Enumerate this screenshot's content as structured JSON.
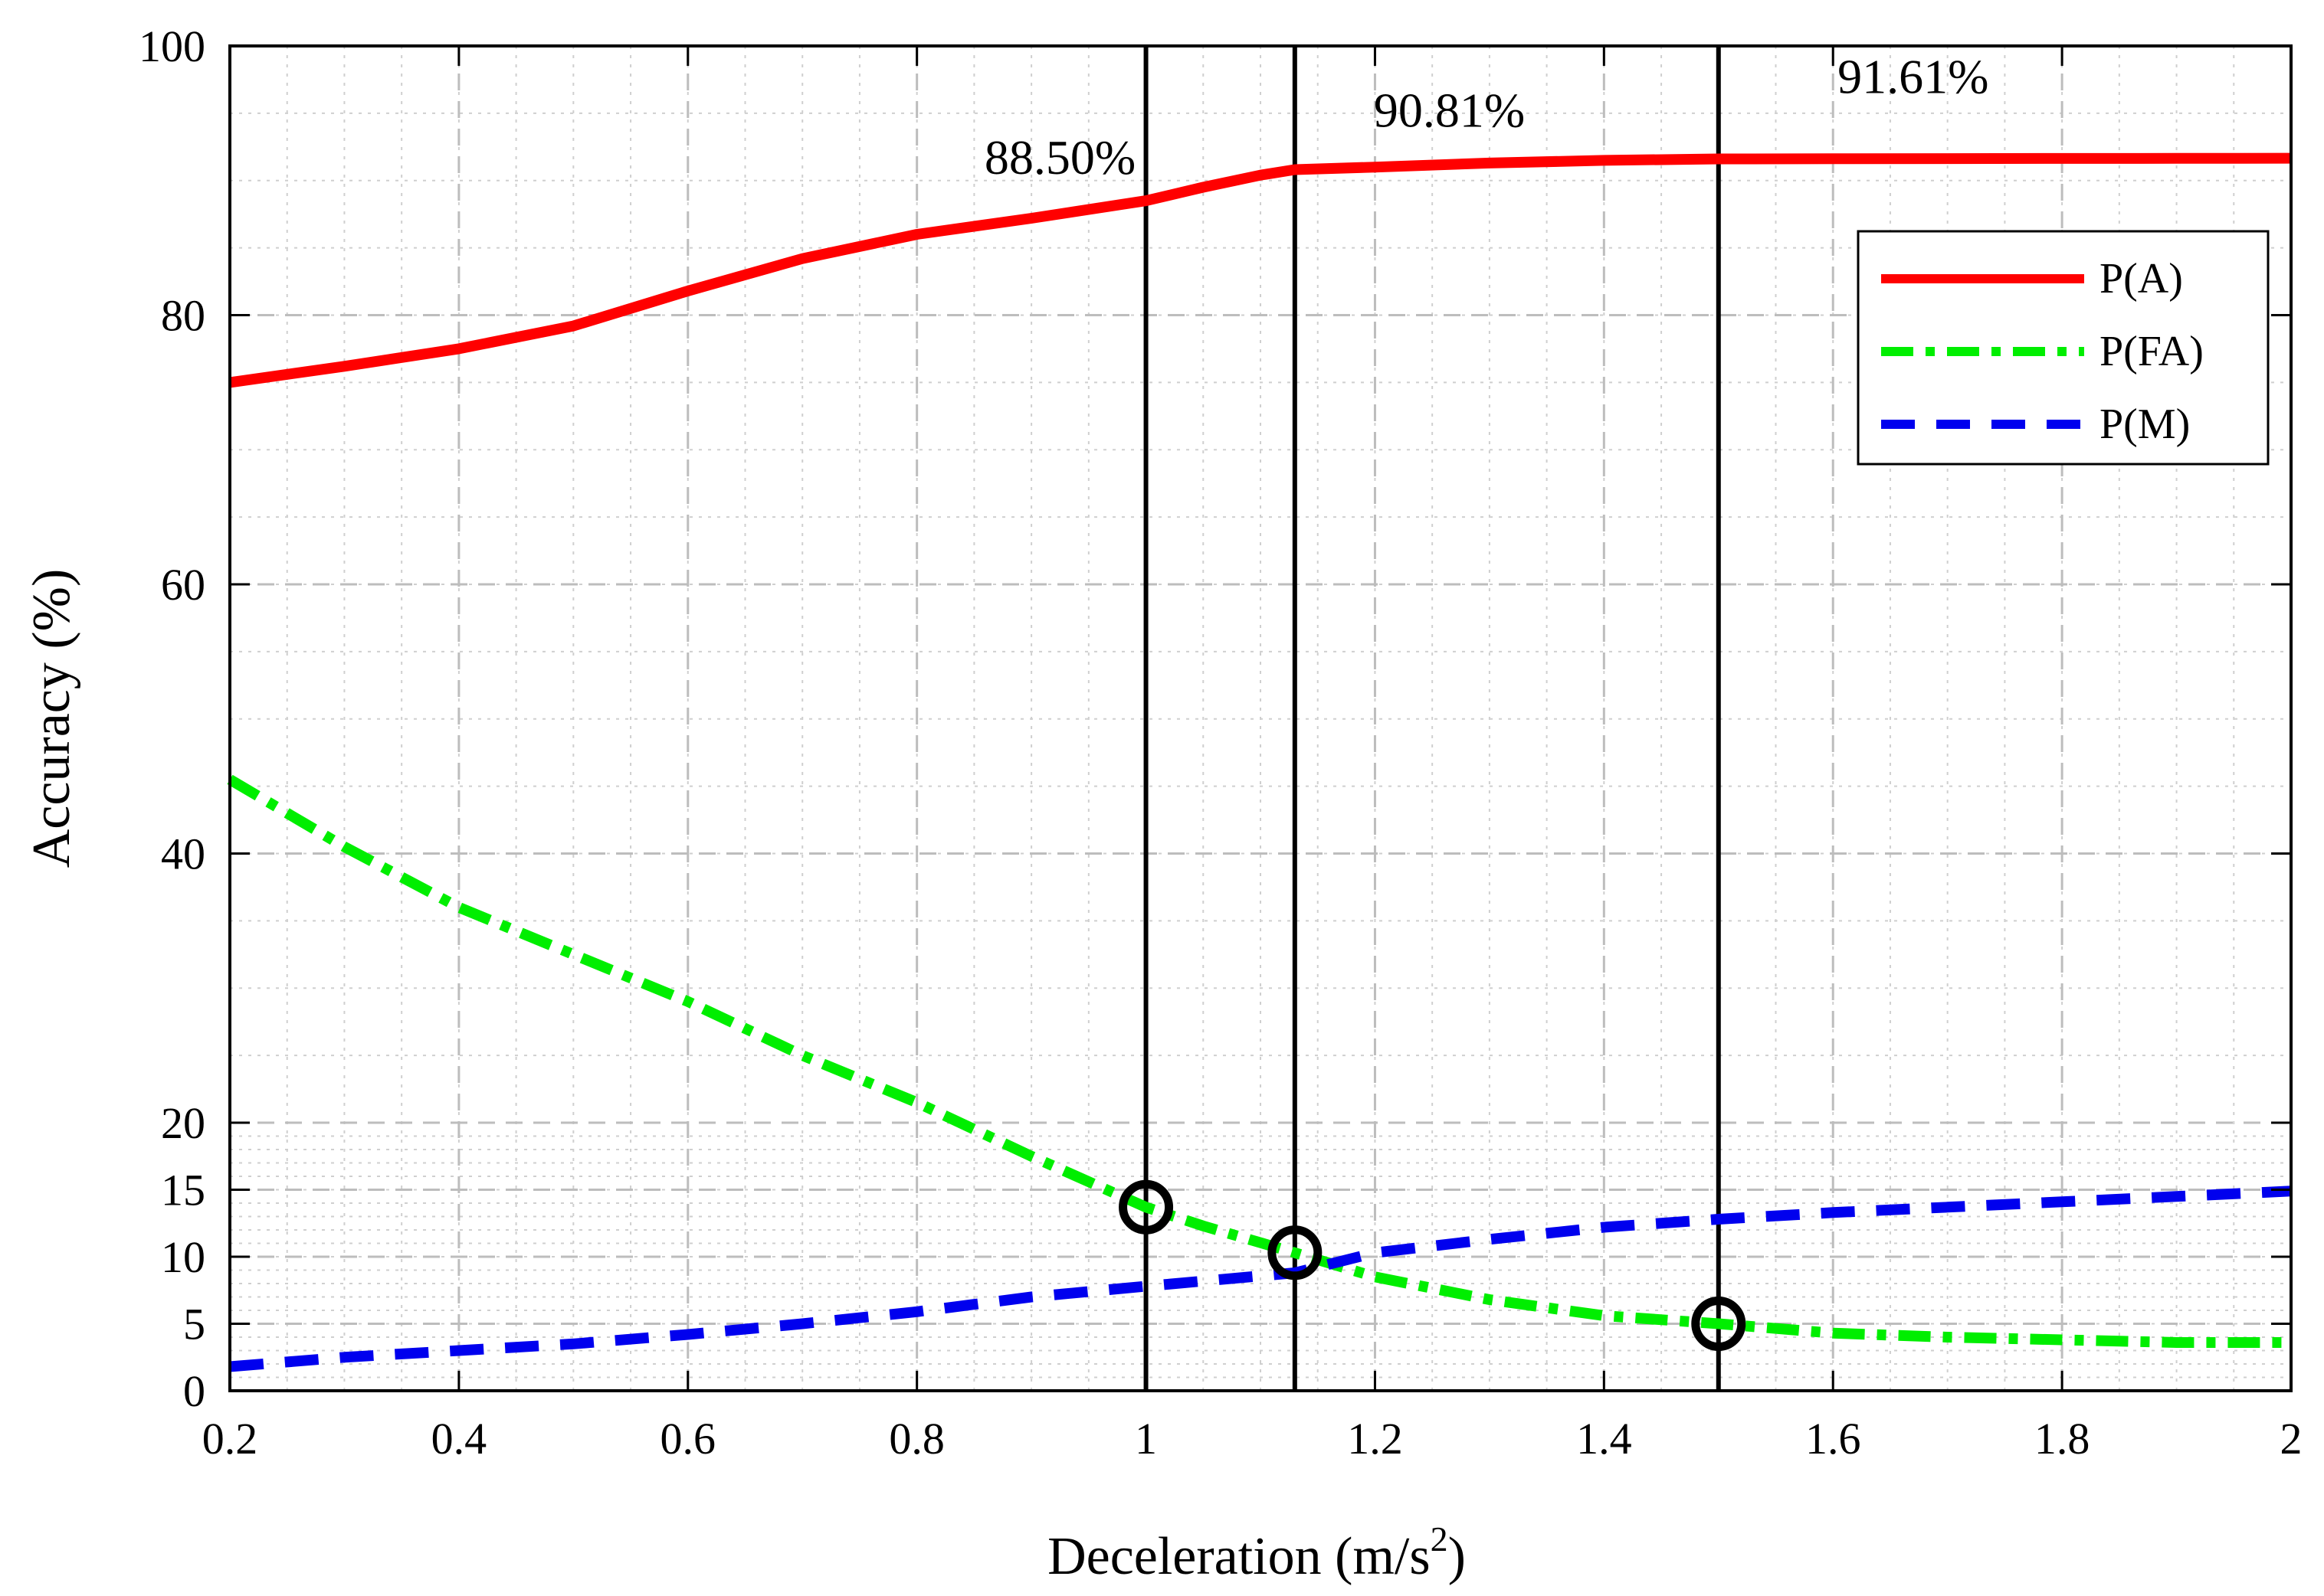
{
  "chart_data": {
    "type": "line",
    "title": "",
    "xlabel": "Deceleration (m/s",
    "xlabel_superscript": "2",
    "xlabel_suffix": ")",
    "ylabel": "Accuracy (%)",
    "xlim": [
      0.2,
      2
    ],
    "ylim": [
      0,
      100
    ],
    "y_scale": "piecewise: 0–20 expanded, 20–100 linear",
    "grid": true,
    "legend_position": "top-right",
    "x_ticks": [
      0.2,
      0.4,
      0.6,
      0.8,
      1,
      1.2,
      1.4,
      1.6,
      1.8,
      2
    ],
    "x_tick_labels": [
      "0.2",
      "0.4",
      "0.6",
      "0.8",
      "1",
      "1.2",
      "1.4",
      "1.6",
      "1.8",
      "2"
    ],
    "y_ticks": [
      0,
      5,
      10,
      15,
      20,
      40,
      60,
      80,
      100
    ],
    "y_tick_labels": [
      "0",
      "5",
      "10",
      "15",
      "20",
      "40",
      "60",
      "80",
      "100"
    ],
    "series": [
      {
        "name": "P(A)",
        "color": "#ff0000",
        "style": "solid",
        "x": [
          0.2,
          0.3,
          0.4,
          0.5,
          0.6,
          0.7,
          0.8,
          0.9,
          1.0,
          1.05,
          1.1,
          1.13,
          1.2,
          1.3,
          1.4,
          1.5,
          1.6,
          1.7,
          1.8,
          1.9,
          2.0
        ],
        "y": [
          75.0,
          76.2,
          77.5,
          79.2,
          81.8,
          84.2,
          86.0,
          87.2,
          88.5,
          89.5,
          90.4,
          90.81,
          91.0,
          91.3,
          91.5,
          91.61,
          91.62,
          91.63,
          91.64,
          91.65,
          91.66
        ]
      },
      {
        "name": "P(FA)",
        "color": "#00ee00",
        "style": "dash-dot",
        "x": [
          0.2,
          0.3,
          0.4,
          0.5,
          0.6,
          0.7,
          0.8,
          0.9,
          1.0,
          1.05,
          1.13,
          1.2,
          1.3,
          1.4,
          1.5,
          1.6,
          1.7,
          1.8,
          1.9,
          2.0
        ],
        "y": [
          45.5,
          40.5,
          36.0,
          32.5,
          29.0,
          25.0,
          21.5,
          17.5,
          13.7,
          12.3,
          10.3,
          8.5,
          6.8,
          5.6,
          5.0,
          4.3,
          4.0,
          3.8,
          3.6,
          3.6
        ]
      },
      {
        "name": "P(M)",
        "color": "#0000ee",
        "style": "dashed",
        "x": [
          0.2,
          0.3,
          0.4,
          0.5,
          0.6,
          0.7,
          0.8,
          0.9,
          1.0,
          1.13,
          1.2,
          1.3,
          1.4,
          1.5,
          1.6,
          1.7,
          1.8,
          1.9,
          2.0
        ],
        "y": [
          1.8,
          2.5,
          3.0,
          3.5,
          4.2,
          5.0,
          5.9,
          7.0,
          7.8,
          8.8,
          10.3,
          11.3,
          12.2,
          12.8,
          13.3,
          13.7,
          14.1,
          14.5,
          14.9
        ]
      }
    ],
    "vertical_lines": [
      1.0,
      1.13,
      1.5
    ],
    "circle_markers": [
      {
        "x": 1.0,
        "y": 13.7
      },
      {
        "x": 1.13,
        "y": 10.3
      },
      {
        "x": 1.5,
        "y": 5.0
      }
    ],
    "annotations": [
      {
        "text": "88.50%",
        "x": 0.925,
        "y": 90.5
      },
      {
        "text": "90.81%",
        "x": 1.265,
        "y": 94.0
      },
      {
        "text": "91.61%",
        "x": 1.67,
        "y": 96.5
      }
    ]
  }
}
